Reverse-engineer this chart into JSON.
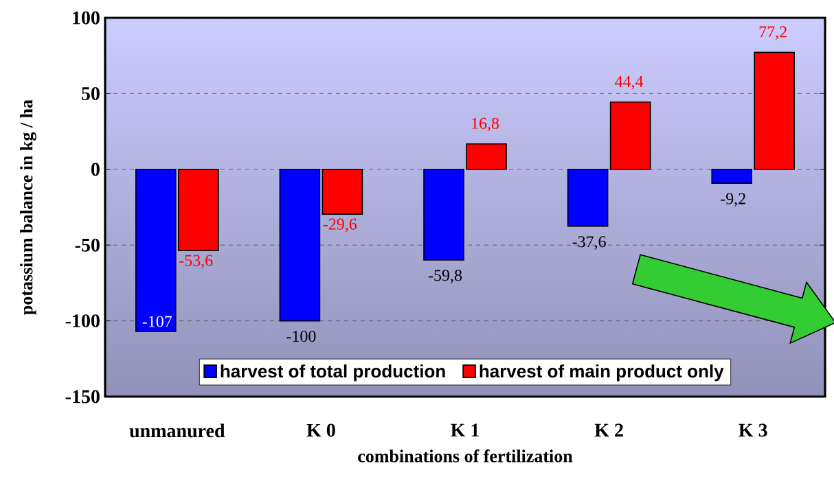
{
  "chart_data": {
    "type": "bar",
    "xlabel": "combinations of fertilization",
    "ylabel": "potassium balance in kg / ha",
    "categories": [
      "unmanured",
      "K 0",
      "K 1",
      "K 2",
      "K 3"
    ],
    "series": [
      {
        "name": "harvest of total production",
        "color": "#0000ff",
        "values": [
          -107,
          -100,
          -59.8,
          -37.6,
          -9.2
        ],
        "value_labels": [
          "-107",
          "-100",
          "-59,8",
          "-37,6",
          "-9,2"
        ]
      },
      {
        "name": "harvest of main product only",
        "color": "#ff0000",
        "values": [
          -53.6,
          -29.6,
          16.8,
          44.4,
          77.2
        ],
        "value_labels": [
          "-53,6",
          "-29,6",
          "16,8",
          "44,4",
          "77,2"
        ]
      }
    ],
    "ylim": [
      -150,
      100
    ],
    "yticks": [
      -150,
      -100,
      -50,
      0,
      50,
      100
    ],
    "grid": "y",
    "legend": "bottom"
  }
}
